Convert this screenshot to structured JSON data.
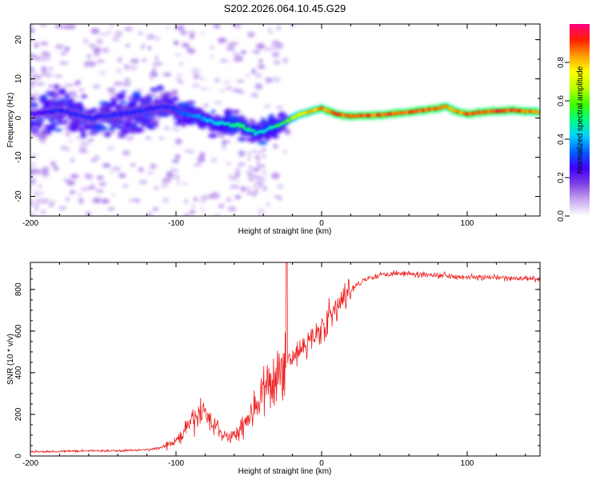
{
  "title": "S202.2026.064.10.45.G29",
  "chart_data": [
    {
      "type": "heatmap",
      "title": "S202.2026.064.10.45.G29",
      "xlabel": "Height of straight line (km)",
      "ylabel": "Frequency (Hz)",
      "xlim": [
        -200,
        150
      ],
      "ylim": [
        -25,
        24
      ],
      "x_ticks": [
        -200,
        -100,
        0,
        100
      ],
      "y_ticks": [
        -20,
        -10,
        0,
        10,
        20
      ],
      "colorbar": {
        "label": "Normalized spectral amplitude",
        "range": [
          0.0,
          1.0
        ],
        "ticks": [
          0.0,
          0.2,
          0.4,
          0.6,
          0.8
        ],
        "colors": [
          "#ffffff",
          "#c9a8f0",
          "#8040e0",
          "#4000ff",
          "#0060ff",
          "#00d0ff",
          "#00ff80",
          "#40ff00",
          "#c0ff00",
          "#ffff00",
          "#ffa000",
          "#ff2000",
          "#ff0080"
        ]
      },
      "ridge": {
        "x": [
          -200,
          -180,
          -160,
          -140,
          -120,
          -105,
          -95,
          -85,
          -75,
          -65,
          -55,
          -45,
          -35,
          -30,
          -25,
          -20,
          -15,
          -10,
          -5,
          0,
          10,
          20,
          40,
          60,
          80,
          85,
          90,
          100,
          110,
          130,
          150
        ],
        "freq": [
          1,
          2,
          0,
          1,
          2,
          3,
          1,
          0.5,
          -1,
          -1.5,
          -2,
          -4,
          -2.5,
          -2,
          -1,
          0,
          1,
          1.5,
          2,
          2.5,
          1,
          0.5,
          0.8,
          1.5,
          2.5,
          3,
          2,
          1,
          1.5,
          2,
          1.5
        ],
        "amplitude": [
          0.25,
          0.3,
          0.3,
          0.3,
          0.3,
          0.3,
          0.35,
          0.4,
          0.45,
          0.5,
          0.55,
          0.5,
          0.5,
          0.55,
          0.6,
          0.7,
          0.8,
          0.85,
          0.85,
          0.9,
          0.95,
          0.95,
          0.95,
          0.95,
          0.95,
          0.9,
          0.9,
          0.95,
          0.95,
          0.95,
          0.9
        ]
      }
    },
    {
      "type": "line",
      "xlabel": "Height of straight line (km)",
      "ylabel": "SNR (10 * v/v)",
      "xlim": [
        -200,
        150
      ],
      "ylim": [
        0,
        930
      ],
      "x_ticks": [
        -200,
        -100,
        0,
        100
      ],
      "y_ticks": [
        0,
        200,
        400,
        600,
        800
      ],
      "series": [
        {
          "name": "SNR",
          "color": "#ee2020",
          "x": [
            -200,
            -180,
            -160,
            -140,
            -120,
            -110,
            -100,
            -90,
            -85,
            -80,
            -75,
            -70,
            -65,
            -60,
            -55,
            -50,
            -45,
            -40,
            -35,
            -30,
            -25,
            -22,
            -20,
            -15,
            -10,
            -5,
            0,
            5,
            10,
            15,
            20,
            25,
            30,
            40,
            50,
            60,
            80,
            100,
            120,
            150
          ],
          "y": [
            20,
            22,
            25,
            25,
            30,
            40,
            70,
            150,
            200,
            210,
            160,
            120,
            90,
            100,
            140,
            190,
            250,
            300,
            330,
            380,
            450,
            470,
            480,
            500,
            540,
            580,
            620,
            660,
            700,
            750,
            790,
            830,
            850,
            870,
            880,
            875,
            870,
            860,
            855,
            850
          ],
          "spike": {
            "x": -24,
            "y": 930
          }
        }
      ]
    }
  ]
}
